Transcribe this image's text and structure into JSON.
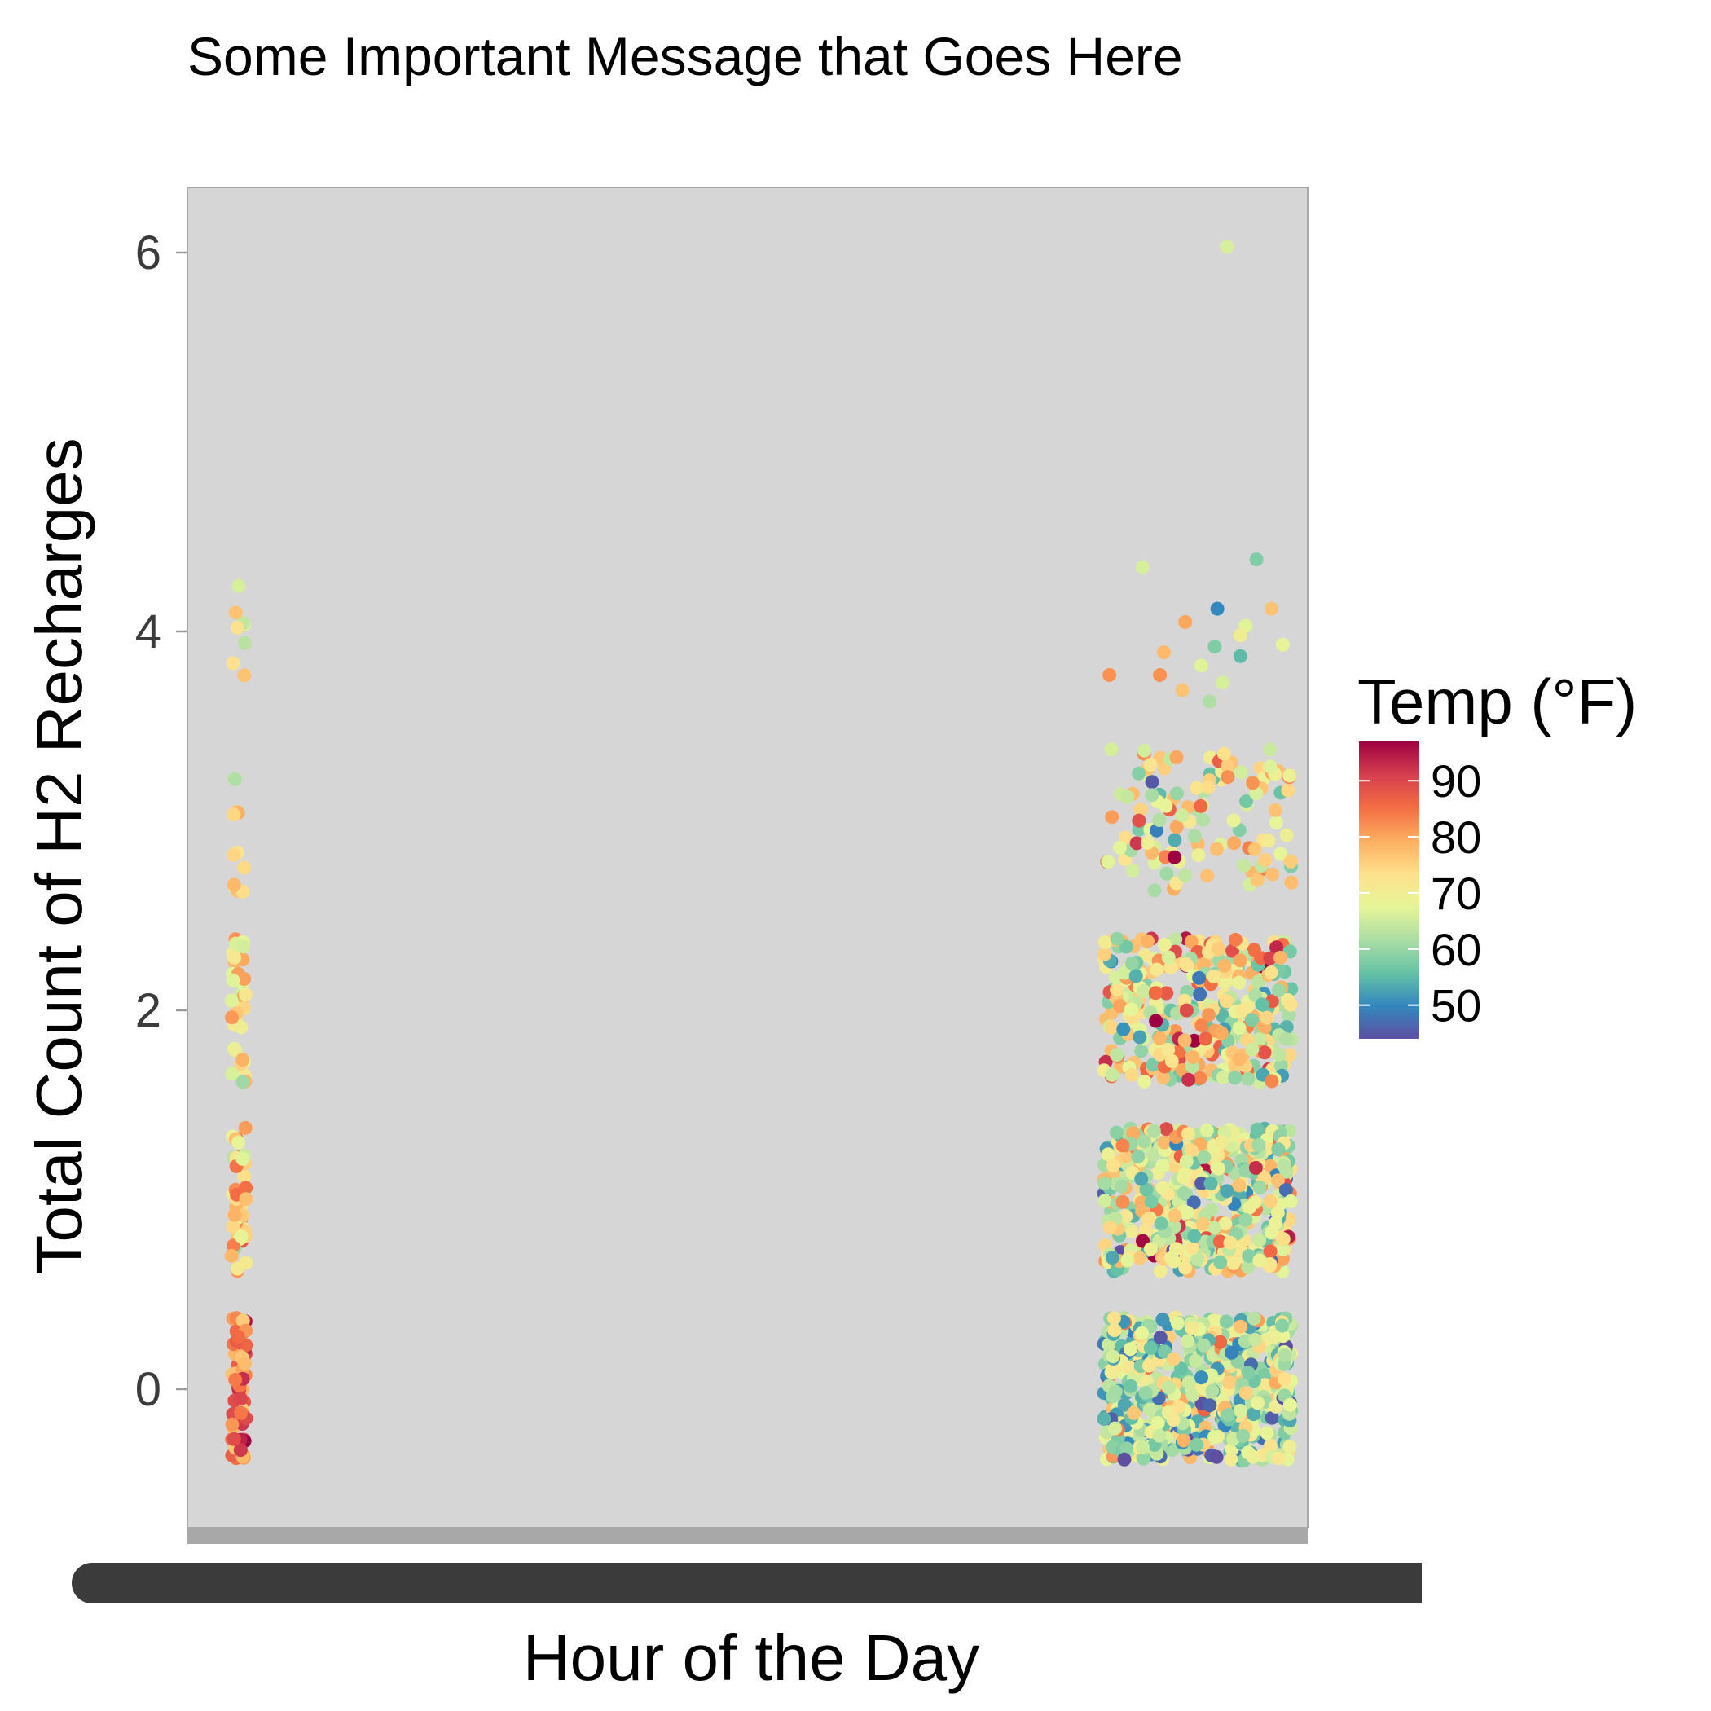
{
  "chart_data": {
    "type": "scatter",
    "title": "Some Important Message that Goes Here",
    "xlabel": "Hour of the Day",
    "ylabel": "Total Count of H2 Recharges",
    "ylim": [
      -0.8,
      6.35
    ],
    "yticks": [
      0,
      2,
      4,
      6
    ],
    "grid": false,
    "panel_background": "#d6d6d6",
    "x_tick_labels_illegible": true,
    "jitter": {
      "x": 0.45,
      "y": 0.38
    },
    "color_scale": {
      "title": "Temp (°F)",
      "palette": "Spectral (reversed)",
      "min": 44,
      "max": 97,
      "ticks": [
        50,
        60,
        70,
        80,
        90
      ],
      "stops": [
        "#5E4FA2",
        "#3288BD",
        "#66C2A5",
        "#ABDDA4",
        "#E6F598",
        "#FEE08B",
        "#FDAE61",
        "#F46D43",
        "#D53E4F",
        "#9E0142"
      ]
    },
    "series": [
      {
        "x_position": "left",
        "groups": [
          {
            "count": 0,
            "n": 70,
            "temp_mean": 84,
            "temp_sd": 6
          },
          {
            "count": 1,
            "n": 45,
            "temp_mean": 76,
            "temp_sd": 6
          },
          {
            "count": 2,
            "n": 35,
            "temp_mean": 72,
            "temp_sd": 5
          },
          {
            "count": 3,
            "n": 11,
            "temp_mean": 72,
            "temp_sd": 4
          },
          {
            "count": 4,
            "n": 4,
            "temp_mean": 72,
            "temp_sd": 4
          }
        ],
        "outlier_points": [
          {
            "y": 4.24,
            "temp": 66
          },
          {
            "y": 4.1,
            "temp": 77
          },
          {
            "y": 4.02,
            "temp": 73
          },
          {
            "y": 3.94,
            "temp": 63
          }
        ]
      },
      {
        "x_position": "right",
        "groups": [
          {
            "count": 0,
            "n": 650,
            "temp_mean": 63,
            "temp_sd": 9
          },
          {
            "count": 1,
            "n": 520,
            "temp_mean": 68,
            "temp_sd": 10
          },
          {
            "count": 2,
            "n": 360,
            "temp_mean": 70,
            "temp_sd": 10
          },
          {
            "count": 3,
            "n": 120,
            "temp_mean": 71,
            "temp_sd": 9
          }
        ],
        "outlier_points": [
          {
            "y": 6.03,
            "temp": 66
          },
          {
            "y": 4.38,
            "temp": 58
          },
          {
            "y": 4.34,
            "temp": 66
          },
          {
            "y": 4.12,
            "temp": 50
          },
          {
            "y": 4.12,
            "temp": 77
          },
          {
            "y": 4.05,
            "temp": 80
          },
          {
            "y": 4.03,
            "temp": 67
          },
          {
            "y": 3.98,
            "temp": 70
          },
          {
            "y": 3.93,
            "temp": 68
          },
          {
            "y": 3.92,
            "temp": 58
          },
          {
            "y": 3.87,
            "temp": 55
          },
          {
            "y": 3.89,
            "temp": 78
          },
          {
            "y": 3.82,
            "temp": 67
          },
          {
            "y": 3.77,
            "temp": 82
          },
          {
            "y": 3.77,
            "temp": 82
          },
          {
            "y": 3.73,
            "temp": 66
          },
          {
            "y": 3.69,
            "temp": 77
          },
          {
            "y": 3.63,
            "temp": 62
          }
        ]
      }
    ]
  }
}
